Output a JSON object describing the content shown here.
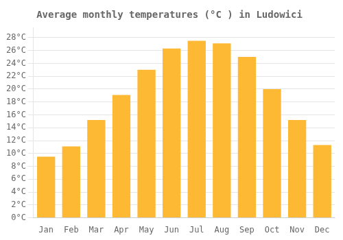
{
  "chart_data": {
    "type": "bar",
    "title": "Average monthly temperatures (°C ) in Ludowici",
    "categories": [
      "Jan",
      "Feb",
      "Mar",
      "Apr",
      "May",
      "Jun",
      "Jul",
      "Aug",
      "Sep",
      "Oct",
      "Nov",
      "Dec"
    ],
    "values": [
      9.5,
      11.1,
      15.2,
      19.1,
      23.0,
      26.3,
      27.5,
      27.1,
      25.0,
      20.0,
      15.2,
      11.3
    ],
    "color": "#FDB933",
    "ylim": [
      0,
      29.5
    ],
    "yticks": [
      {
        "value": 0,
        "label": "0°C"
      },
      {
        "value": 2,
        "label": "2°C"
      },
      {
        "value": 4,
        "label": "4°C"
      },
      {
        "value": 6,
        "label": "6°C"
      },
      {
        "value": 8,
        "label": "8°C"
      },
      {
        "value": 10,
        "label": "10°C"
      },
      {
        "value": 12,
        "label": "12°C"
      },
      {
        "value": 14,
        "label": "14°C"
      },
      {
        "value": 16,
        "label": "16°C"
      },
      {
        "value": 18,
        "label": "18°C"
      },
      {
        "value": 20,
        "label": "20°C"
      },
      {
        "value": 22,
        "label": "22°C"
      },
      {
        "value": 24,
        "label": "24°C"
      },
      {
        "value": 26,
        "label": "26°C"
      },
      {
        "value": 28,
        "label": "28°C"
      }
    ],
    "grid": true
  }
}
